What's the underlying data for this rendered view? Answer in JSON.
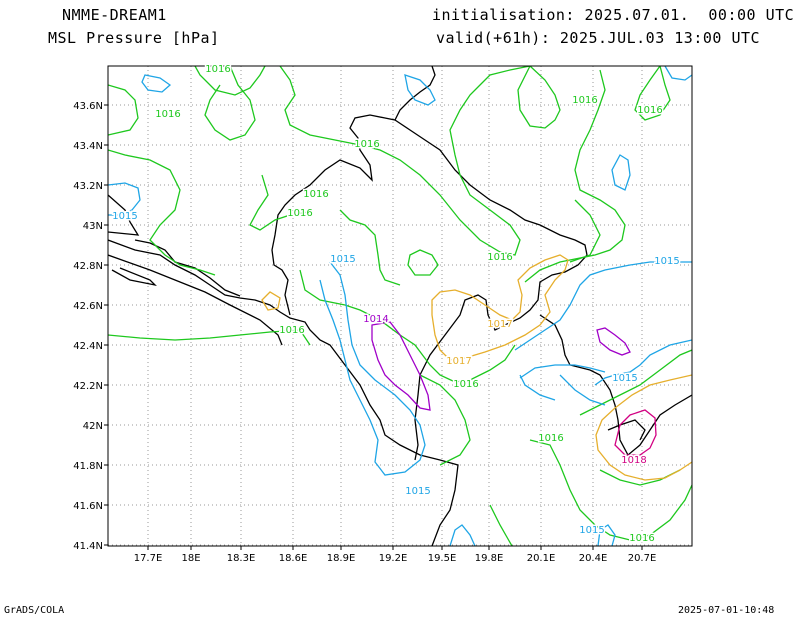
{
  "header": {
    "model": "NMME-DREAM1",
    "variable": "MSL Pressure [hPa]",
    "init": "initialisation: 2025.07.01.  00:00 UTC",
    "valid": "valid(+61h): 2025.JUL.03 13:00 UTC"
  },
  "footer": {
    "left": "GrADS/COLA",
    "right": "2025-07-01-10:48"
  },
  "axes": {
    "lon_labels": [
      "17.7E",
      "18E",
      "18.3E",
      "18.6E",
      "18.9E",
      "19.2E",
      "19.5E",
      "19.8E",
      "20.1E",
      "20.4E",
      "20.7E"
    ],
    "lat_labels": [
      "43.6N",
      "43.4N",
      "43.2N",
      "43N",
      "42.8N",
      "42.6N",
      "42.4N",
      "42.2N",
      "42N",
      "41.8N",
      "41.6N",
      "41.4N"
    ]
  },
  "contour_labels": [
    {
      "text": "1016",
      "level": 1016
    },
    {
      "text": "1016",
      "level": 1016
    },
    {
      "text": "1016",
      "level": 1016
    },
    {
      "text": "1016",
      "level": 1016
    },
    {
      "text": "1016",
      "level": 1016
    },
    {
      "text": "1016",
      "level": 1016
    },
    {
      "text": "1016",
      "level": 1016
    },
    {
      "text": "1016",
      "level": 1016
    },
    {
      "text": "1016",
      "level": 1016
    },
    {
      "text": "1016",
      "level": 1016
    },
    {
      "text": "1016",
      "level": 1016
    },
    {
      "text": "1016",
      "level": 1016
    },
    {
      "text": "1015",
      "level": 1015
    },
    {
      "text": "1015",
      "level": 1015
    },
    {
      "text": "1015",
      "level": 1015
    },
    {
      "text": "1015",
      "level": 1015
    },
    {
      "text": "1015",
      "level": 1015
    },
    {
      "text": "1015",
      "level": 1015
    },
    {
      "text": "1014",
      "level": 1014
    },
    {
      "text": "1017",
      "level": 1017
    },
    {
      "text": "1017",
      "level": 1017
    },
    {
      "text": "1018",
      "level": 1018
    }
  ],
  "colors": {
    "c1014": "#a000c8",
    "c1015": "#1fa5e6",
    "c1016": "#1ec81e",
    "c1017": "#e6af2d",
    "c1018": "#d20082",
    "coast": "#000000",
    "grid": "#999999"
  }
}
